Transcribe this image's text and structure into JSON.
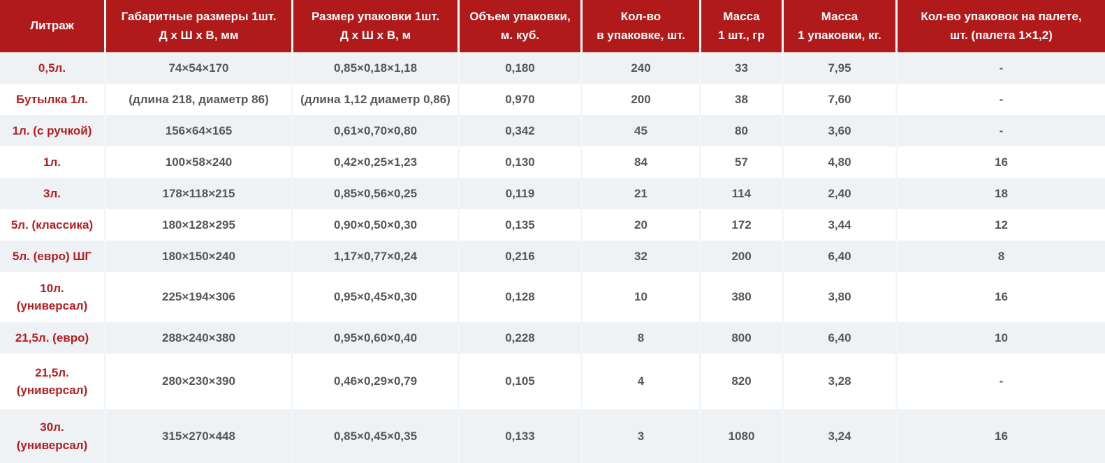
{
  "chart_data": {
    "type": "table",
    "columns": [
      "Литраж",
      "Габаритные размеры 1шт. Д х Ш х В, мм",
      "Размер упаковки 1шт. Д х Ш х В, м",
      "Объем упаковки, м. куб.",
      "Кол-во в упаковке, шт.",
      "Масса 1 шт., гр",
      "Масса 1 упаковки, кг.",
      "Кол-во упаковок на палете, шт. (палета 1×1,2)"
    ],
    "rows": [
      [
        "0,5л.",
        "74×54×170",
        "0,85×0,18×1,18",
        "0,180",
        "240",
        "33",
        "7,95",
        "-"
      ],
      [
        "Бутылка 1л.",
        "(длина 218, диаметр 86)",
        "(длина 1,12 диаметр 0,86)",
        "0,970",
        "200",
        "38",
        "7,60",
        "-"
      ],
      [
        "1л. (с ручкой)",
        "156×64×165",
        "0,61×0,70×0,80",
        "0,342",
        "45",
        "80",
        "3,60",
        "-"
      ],
      [
        "1л.",
        "100×58×240",
        "0,42×0,25×1,23",
        "0,130",
        "84",
        "57",
        "4,80",
        "16"
      ],
      [
        "3л.",
        "178×118×215",
        "0,85×0,56×0,25",
        "0,119",
        "21",
        "114",
        "2,40",
        "18"
      ],
      [
        "5л. (классика)",
        "180×128×295",
        "0,90×0,50×0,30",
        "0,135",
        "20",
        "172",
        "3,44",
        "12"
      ],
      [
        "5л. (евро) ШГ",
        "180×150×240",
        "1,17×0,77×0,24",
        "0,216",
        "32",
        "200",
        "6,40",
        "8"
      ],
      [
        "10л. (универсал)",
        "225×194×306",
        "0,95×0,45×0,30",
        "0,128",
        "10",
        "380",
        "3,80",
        "16"
      ],
      [
        "21,5л. (евро)",
        "288×240×380",
        "0,95×0,60×0,40",
        "0,228",
        "8",
        "800",
        "6,40",
        "10"
      ],
      [
        "21,5л. (универсал)",
        "280×230×390",
        "0,46×0,29×0,79",
        "0,105",
        "4",
        "820",
        "3,28",
        "-"
      ],
      [
        "30л. (универсал)",
        "315×270×448",
        "0,85×0,45×0,35",
        "0,133",
        "3",
        "1080",
        "3,24",
        "16"
      ]
    ]
  },
  "table": {
    "header": [
      {
        "lines": [
          "Литраж"
        ]
      },
      {
        "lines": [
          "Габаритные размеры 1шт.",
          "Д х Ш х В, мм"
        ]
      },
      {
        "lines": [
          "Размер упаковки 1шт.",
          "Д х Ш х В, м"
        ]
      },
      {
        "lines": [
          "Объем упаковки,",
          "м. куб."
        ]
      },
      {
        "lines": [
          "Кол-во",
          "в упаковке, шт."
        ]
      },
      {
        "lines": [
          "Масса",
          "1 шт., гр"
        ]
      },
      {
        "lines": [
          "Масса",
          "1 упаковки, кг."
        ]
      },
      {
        "lines": [
          "Кол-во упаковок на палете,",
          "шт. (палета 1×1,2)"
        ]
      }
    ],
    "rows": [
      {
        "litrage_lines": [
          "0,5л."
        ],
        "values": [
          "74×54×170",
          "0,85×0,18×1,18",
          "0,180",
          "240",
          "33",
          "7,95",
          "-"
        ]
      },
      {
        "litrage_lines": [
          "Бутылка 1л."
        ],
        "values": [
          "(длина 218, диаметр 86)",
          "(длина 1,12 диаметр 0,86)",
          "0,970",
          "200",
          "38",
          "7,60",
          "-"
        ]
      },
      {
        "litrage_lines": [
          "1л. (с ручкой)"
        ],
        "values": [
          "156×64×165",
          "0,61×0,70×0,80",
          "0,342",
          "45",
          "80",
          "3,60",
          "-"
        ]
      },
      {
        "litrage_lines": [
          "1л."
        ],
        "values": [
          "100×58×240",
          "0,42×0,25×1,23",
          "0,130",
          "84",
          "57",
          "4,80",
          "16"
        ]
      },
      {
        "litrage_lines": [
          "3л."
        ],
        "values": [
          "178×118×215",
          "0,85×0,56×0,25",
          "0,119",
          "21",
          "114",
          "2,40",
          "18"
        ]
      },
      {
        "litrage_lines": [
          "5л. (классика)"
        ],
        "values": [
          "180×128×295",
          "0,90×0,50×0,30",
          "0,135",
          "20",
          "172",
          "3,44",
          "12"
        ]
      },
      {
        "litrage_lines": [
          "5л. (евро) ШГ"
        ],
        "values": [
          "180×150×240",
          "1,17×0,77×0,24",
          "0,216",
          "32",
          "200",
          "6,40",
          "8"
        ]
      },
      {
        "litrage_lines": [
          "10л.",
          "(универсал)"
        ],
        "values": [
          "225×194×306",
          "0,95×0,45×0,30",
          "0,128",
          "10",
          "380",
          "3,80",
          "16"
        ]
      },
      {
        "litrage_lines": [
          "21,5л. (евро)"
        ],
        "values": [
          "288×240×380",
          "0,95×0,60×0,40",
          "0,228",
          "8",
          "800",
          "6,40",
          "10"
        ]
      },
      {
        "litrage_lines": [
          "21,5л.",
          "(универсал)"
        ],
        "values": [
          "280×230×390",
          "0,46×0,29×0,79",
          "0,105",
          "4",
          "820",
          "3,28",
          "-"
        ]
      },
      {
        "litrage_lines": [
          "30л.",
          "(универсал)"
        ],
        "values": [
          "315×270×448",
          "0,85×0,45×0,35",
          "0,133",
          "3",
          "1080",
          "3,24",
          "16"
        ]
      }
    ]
  },
  "colors": {
    "header_bg": "#b11a1a",
    "header_text": "#ffffff",
    "row_alt_bg": "#eef2f5",
    "row_bg": "#ffffff",
    "label_color": "#b21f1f",
    "value_color": "#54585c",
    "divider": "#f2f6f8"
  }
}
